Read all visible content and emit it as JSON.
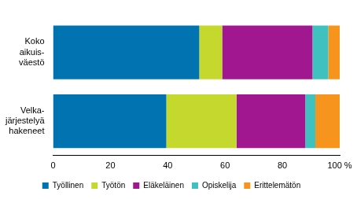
{
  "chart_data": {
    "type": "bar",
    "orientation": "horizontal",
    "stacked": true,
    "categories": [
      [
        "Koko",
        "aikuis-",
        "väestö"
      ],
      [
        "Velka-",
        "järjestelyä",
        "hakeneet"
      ]
    ],
    "series": [
      {
        "name": "Työllinen",
        "color": "#0073b0",
        "values": [
          51,
          39.5
        ]
      },
      {
        "name": "Työtön",
        "color": "#c4d82e",
        "values": [
          8,
          24.5
        ]
      },
      {
        "name": "Eläkeläinen",
        "color": "#a0178f",
        "values": [
          31.5,
          24
        ]
      },
      {
        "name": "Opiskelija",
        "color": "#3fc1c0",
        "values": [
          5.5,
          3.5
        ]
      },
      {
        "name": "Erittelemätön",
        "color": "#f7941d",
        "values": [
          4,
          8.5
        ]
      }
    ],
    "xlim": [
      0,
      100
    ],
    "xticks": [
      0,
      20,
      40,
      60,
      80,
      {
        "value": 100,
        "label": "100 %"
      }
    ],
    "grid": false,
    "legend": "bottom"
  }
}
